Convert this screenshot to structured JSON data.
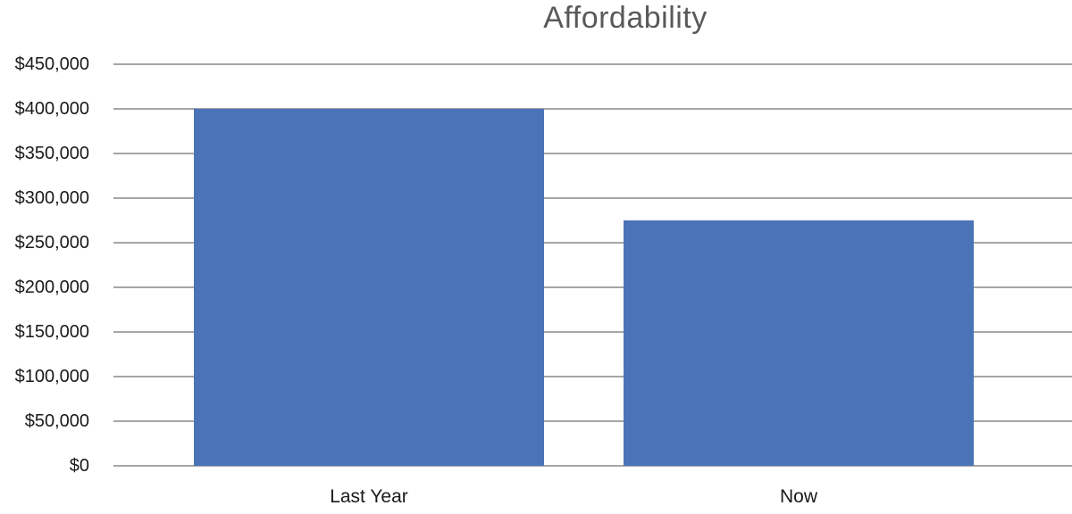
{
  "chart_data": {
    "type": "bar",
    "title": "Affordability",
    "categories": [
      "Last Year",
      "Now"
    ],
    "values": [
      400000,
      275000
    ],
    "xlabel": "",
    "ylabel": "",
    "ylim": [
      0,
      450000
    ],
    "ytick_step": 50000,
    "ytick_labels": [
      "$0",
      "$50,000",
      "$100,000",
      "$150,000",
      "$200,000",
      "$250,000",
      "$300,000",
      "$350,000",
      "$400,000",
      "$450,000"
    ],
    "grid": true,
    "legend": false,
    "colors": {
      "bar": "#4a73b8",
      "gridline": "#a6a6a6",
      "title": "#595959",
      "axis_label": "#1a1a1a"
    }
  }
}
